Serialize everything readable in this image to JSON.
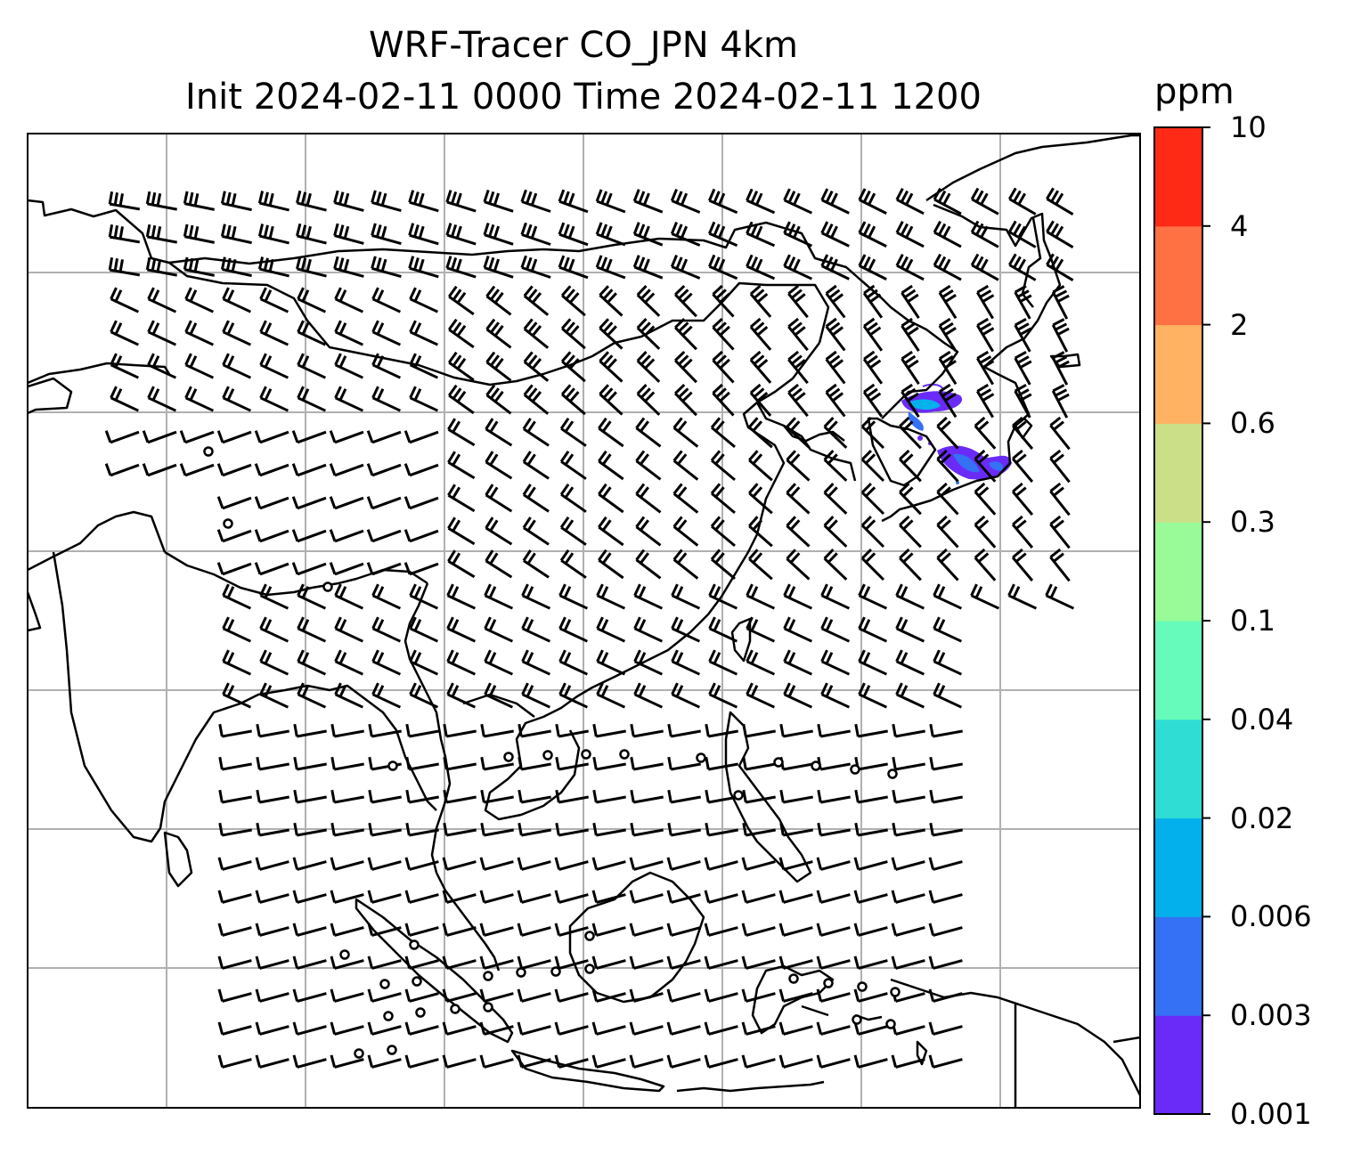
{
  "title_line1": "WRF-Tracer CO_JPN 4km",
  "title_line2": "Init 2024-02-11 0000 Time 2024-02-11 1200",
  "colorbar": {
    "unit": "ppm",
    "levels": [
      "0.001",
      "0.003",
      "0.006",
      "0.02",
      "0.04",
      "0.1",
      "0.3",
      "0.6",
      "2",
      "4",
      "10"
    ],
    "colors": [
      "#6a2bf8",
      "#3471f4",
      "#03b0ec",
      "#2fddd4",
      "#66fbbb",
      "#98fb98",
      "#cbdf88",
      "#ffb262",
      "#ff7043",
      "#ff2a16"
    ]
  },
  "map": {
    "gridlines": true,
    "coastline_color": "#000000",
    "wind_barb_color": "#000000",
    "tracer_plume_colors": [
      "#6a2bf8",
      "#3471f4",
      "#03b0ec"
    ]
  }
}
